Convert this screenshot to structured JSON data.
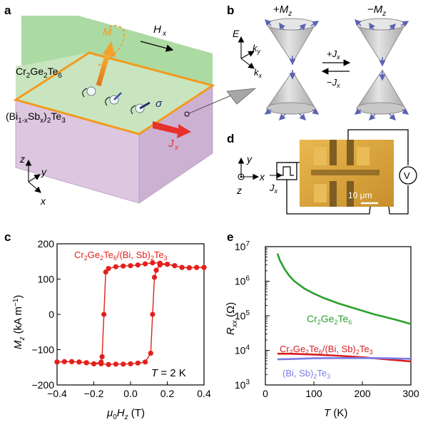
{
  "panels": {
    "a": {
      "letter": "a",
      "magnetization": "M",
      "field": "H",
      "field_sub": "x",
      "top_layer": "Cr2Ge2Te6",
      "bottom_layer": "(Bi1-xSbx)2Te3",
      "current": "J",
      "current_sub": "x",
      "spin": "σ",
      "axes": [
        "z",
        "y",
        "x"
      ],
      "colors": {
        "top_layer": "#9fd493",
        "bottom_layer": "#dcc6e0",
        "interface": "#f39a1e",
        "current_arrow": "#e8312b"
      }
    },
    "b": {
      "letter": "b",
      "left_label": "+Mz",
      "right_label": "−Mz",
      "axes": [
        "E",
        "ky",
        "kx"
      ],
      "forward": "+Jx",
      "backward": "−Jx",
      "colors": {
        "cone": "#c9c9c9",
        "spin": "#5b62b3"
      }
    },
    "c": {
      "letter": "c",
      "legend": "Cr2Ge2Te6/(Bi, Sb)2Te3",
      "ylabel": "Mz (kA m−1)",
      "xlabel": "μ0Hz (T)",
      "annotation": "T = 2 K",
      "x_ticks": [
        "−0.4",
        "−0.2",
        "0.0",
        "0.2",
        "0.4"
      ],
      "y_ticks": [
        "200",
        "100",
        "0",
        "−100",
        "−200"
      ]
    },
    "d": {
      "letter": "d",
      "axes": [
        "y",
        "x",
        "z"
      ],
      "current": "J",
      "current_sub": "x",
      "voltmeter": "V",
      "scale_bar": "10 μm",
      "colors": {
        "device": "#d9a53c",
        "substrate": "#8a6a2e"
      }
    },
    "e": {
      "letter": "e",
      "ylabel": "Rxx (Ω)",
      "xlabel": "T (K)",
      "x_ticks": [
        "0",
        "100",
        "200",
        "300"
      ],
      "y_ticks": [
        "103",
        "104",
        "105",
        "106",
        "107"
      ]
    }
  },
  "chart_data": [
    {
      "type": "line",
      "panel": "c",
      "title": "",
      "xlabel": "μ0Hz (T)",
      "ylabel": "Mz (kA m−1)",
      "xlim": [
        -0.4,
        0.4
      ],
      "ylim": [
        -200,
        200
      ],
      "grid": false,
      "legend_position": "top-right",
      "color": "#e2201c",
      "series": [
        {
          "name": "Cr2Ge2Te6/(Bi, Sb)2Te3",
          "branch": "sweep-up",
          "x": [
            -0.4,
            -0.36,
            -0.32,
            -0.28,
            -0.24,
            -0.2,
            -0.16,
            -0.12,
            -0.08,
            -0.04,
            0.0,
            0.04,
            0.08,
            0.11,
            0.12,
            0.13,
            0.14,
            0.16,
            0.2,
            0.24,
            0.28,
            0.32,
            0.36,
            0.4
          ],
          "y": [
            -135,
            -134,
            -134,
            -135,
            -137,
            -140,
            -140,
            -142,
            -141,
            -141,
            -140,
            -138,
            -135,
            -110,
            0,
            105,
            125,
            140,
            142,
            138,
            133,
            132,
            133,
            133
          ]
        },
        {
          "name": "Cr2Ge2Te6/(Bi, Sb)2Te3",
          "branch": "sweep-down",
          "x": [
            0.4,
            0.36,
            0.32,
            0.28,
            0.24,
            0.2,
            0.16,
            0.12,
            0.08,
            0.04,
            0.0,
            -0.04,
            -0.08,
            -0.12,
            -0.135,
            -0.145,
            -0.155,
            -0.16,
            -0.2,
            -0.24,
            -0.28,
            -0.32,
            -0.36,
            -0.4
          ],
          "y": [
            133,
            133,
            132,
            133,
            138,
            142,
            145,
            146,
            143,
            140,
            138,
            137,
            135,
            130,
            120,
            0,
            -120,
            -135,
            -140,
            -137,
            -135,
            -134,
            -134,
            -135
          ]
        }
      ],
      "annotation": "T = 2 K"
    },
    {
      "type": "line",
      "panel": "e",
      "title": "",
      "xlabel": "T (K)",
      "ylabel": "Rxx (Ω)",
      "xlim": [
        0,
        300
      ],
      "ylim": [
        1000,
        10000000
      ],
      "yscale": "log",
      "grid": false,
      "series": [
        {
          "name": "Cr2Ge2Te6",
          "color": "#2ca02c",
          "x": [
            25,
            30,
            40,
            50,
            60,
            80,
            100,
            120,
            150,
            180,
            200,
            225,
            250,
            275,
            300
          ],
          "y": [
            6300000,
            4000000,
            2200000,
            1400000,
            1000000,
            620000,
            440000,
            330000,
            230000,
            170000,
            140000,
            110000,
            90000,
            73000,
            58000
          ]
        },
        {
          "name": "Cr2Ge2Te6/(Bi, Sb)2Te3",
          "color": "#d61e1e",
          "x": [
            25,
            50,
            100,
            150,
            200,
            250,
            300
          ],
          "y": [
            8000,
            8000,
            7600,
            7000,
            6300,
            5500,
            4800
          ]
        },
        {
          "name": "(Bi, Sb)2Te3",
          "color": "#7b7be6",
          "x": [
            25,
            50,
            100,
            150,
            200,
            250,
            300
          ],
          "y": [
            5500,
            5600,
            5900,
            6000,
            6000,
            5900,
            5700
          ]
        }
      ]
    }
  ]
}
